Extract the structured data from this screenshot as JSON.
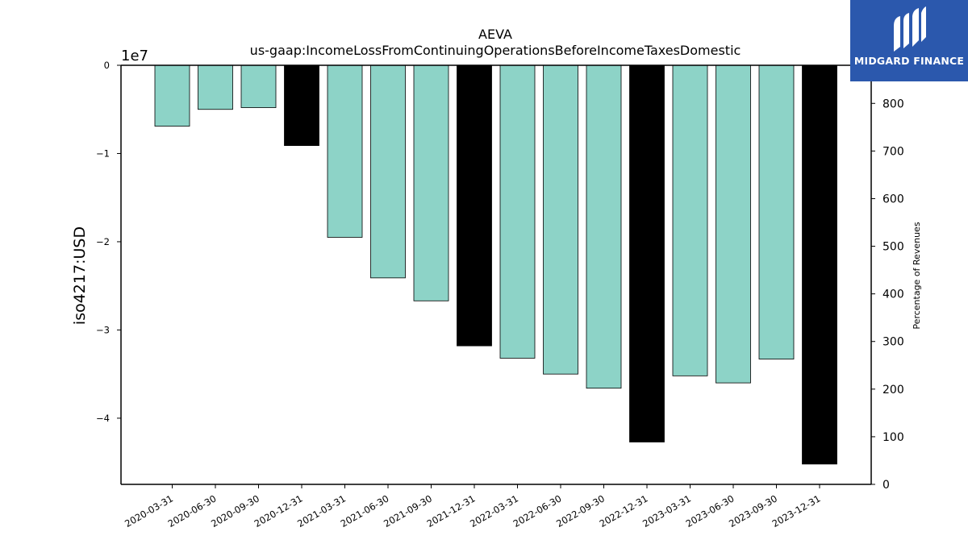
{
  "chart_data": {
    "type": "bar",
    "title": "AEVA",
    "subtitle": "us-gaap:IncomeLossFromContinuingOperationsBeforeIncomeTaxesDomestic",
    "ylabel": "iso4217:USD",
    "y_multiplier_label": "1e7",
    "y2label": "Percentage of Revenues",
    "ylim": [
      -47500000,
      0
    ],
    "y2lim": [
      0,
      880
    ],
    "yticks": [
      0,
      -10000000,
      -20000000,
      -30000000,
      -40000000
    ],
    "ytick_labels": [
      "0",
      "−1",
      "−2",
      "−3",
      "−4"
    ],
    "y2ticks": [
      0,
      100,
      200,
      300,
      400,
      500,
      600,
      700,
      800
    ],
    "categories": [
      "2020-03-31",
      "2020-06-30",
      "2020-09-30",
      "2020-12-31",
      "2021-03-31",
      "2021-06-30",
      "2021-09-30",
      "2021-12-31",
      "2022-03-31",
      "2022-06-30",
      "2022-09-30",
      "2022-12-31",
      "2023-03-31",
      "2023-06-30",
      "2023-09-30",
      "2023-12-31"
    ],
    "values": [
      -6900000,
      -5000000,
      -4800000,
      -9100000,
      -19500000,
      -24100000,
      -26700000,
      -31800000,
      -33200000,
      -35000000,
      -36600000,
      -42700000,
      -35200000,
      -36000000,
      -33300000,
      -45200000
    ],
    "bar_colors": [
      "#8dd3c7",
      "#8dd3c7",
      "#8dd3c7",
      "#000000",
      "#8dd3c7",
      "#8dd3c7",
      "#8dd3c7",
      "#000000",
      "#8dd3c7",
      "#8dd3c7",
      "#8dd3c7",
      "#000000",
      "#8dd3c7",
      "#8dd3c7",
      "#8dd3c7",
      "#000000"
    ],
    "grid": false
  },
  "logo": {
    "text": "MIDGARD FINANCE",
    "background": "#2b58ad"
  }
}
